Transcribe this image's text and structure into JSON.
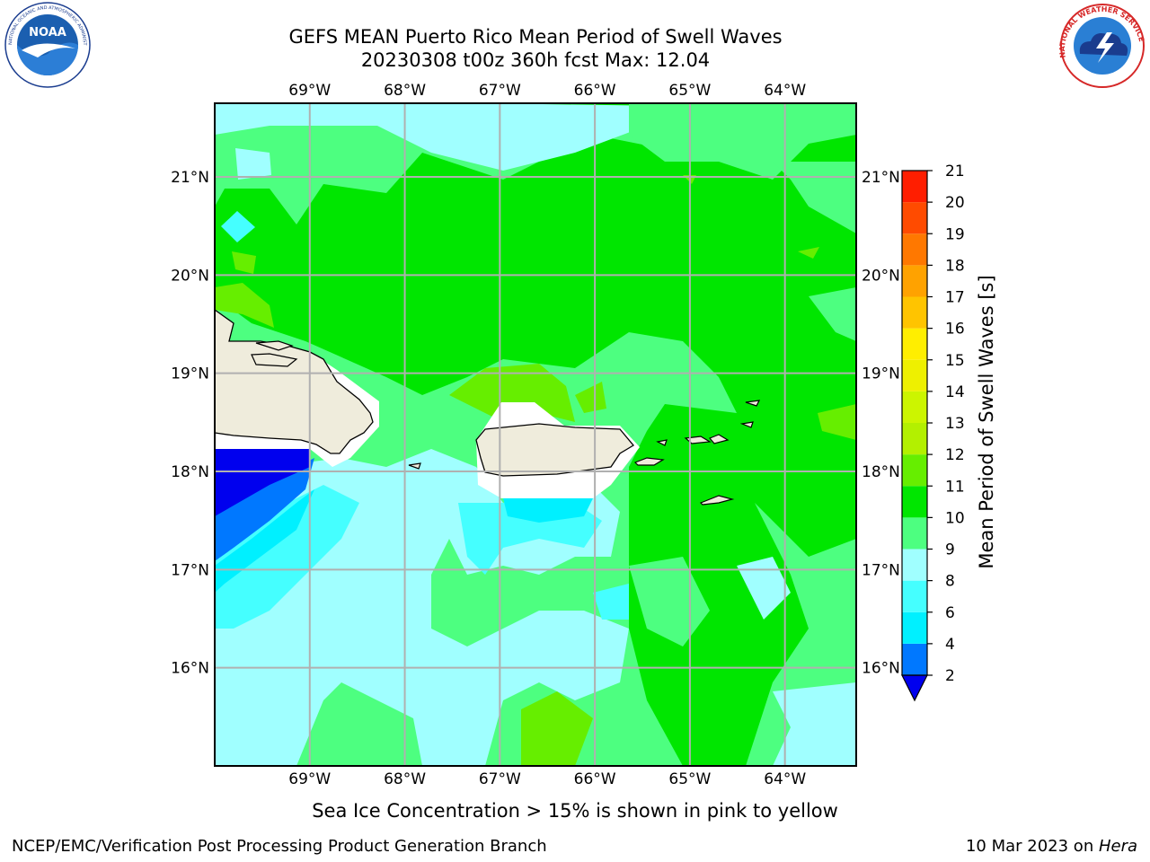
{
  "header": {
    "title_line1": "GEFS MEAN Puerto Rico Mean Period of Swell Waves",
    "title_line2": "20230308 t00z 360h fcst   Max: 12.04"
  },
  "logos": {
    "left_text": "NOAA",
    "left_ring_text": "NATIONAL OCEANIC AND ATMOSPHERIC ADMINISTRATION",
    "left_ring_bottom": "U.S. DEPARTMENT OF COMMERCE",
    "right_ring_text": "NATIONAL WEATHER SERVICE"
  },
  "map": {
    "lon_labels": [
      "69°W",
      "68°W",
      "67°W",
      "66°W",
      "65°W",
      "64°W"
    ],
    "lat_labels": [
      "21°N",
      "20°N",
      "19°N",
      "18°N",
      "17°N",
      "16°N"
    ],
    "lon_range": [
      -70,
      -63.25
    ],
    "lat_range": [
      15.0,
      21.75
    ],
    "grid": true
  },
  "colorbar": {
    "label": "Mean Period of Swell Waves [s]",
    "ticks": [
      "2",
      "4",
      "6",
      "8",
      "9",
      "10",
      "11",
      "12",
      "13",
      "14",
      "15",
      "16",
      "17",
      "18",
      "19",
      "20",
      "21"
    ],
    "colors": [
      "#0000ee",
      "#0078ff",
      "#00f0ff",
      "#45ffff",
      "#a0ffff",
      "#4dff80",
      "#00e600",
      "#66ee00",
      "#b3f000",
      "#ccf500",
      "#eef000",
      "#ffee00",
      "#ffc400",
      "#ffa200",
      "#ff7800",
      "#ff4b00",
      "#ff1e00",
      "#ff0000"
    ],
    "extend": "min"
  },
  "chart_data": {
    "type": "heatmap",
    "title": "GEFS MEAN Puerto Rico Mean Period of Swell Waves",
    "colorbar_label": "Mean Period of Swell Waves [s]",
    "max_value": 12.04,
    "levels": [
      2,
      4,
      6,
      8,
      9,
      10,
      11,
      12,
      13,
      14,
      15,
      16,
      17,
      18,
      19,
      20,
      21
    ]
  },
  "footer": {
    "note": "Sea Ice Concentration > 15% is shown in pink to yellow",
    "left": "NCEP/EMC/Verification Post Processing Product Generation Branch",
    "right_date": "10 Mar 2023 on ",
    "right_host": "Hera"
  },
  "colors": {
    "land": "#efecdc",
    "grid": "#b0b0b0"
  }
}
